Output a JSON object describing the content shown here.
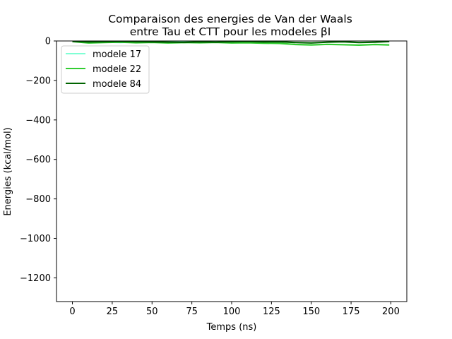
{
  "chart_data": {
    "type": "line",
    "title_line1": "Comparaison des energies de Van der Waals",
    "title_line2": "entre Tau et CTT pour les modeles βI",
    "xlabel": "Temps (ns)",
    "ylabel": "Energies (kcal/mol)",
    "xlim": [
      -10,
      210
    ],
    "ylim": [
      -1320,
      0
    ],
    "xticks": [
      0,
      25,
      50,
      75,
      100,
      125,
      150,
      175,
      200
    ],
    "yticks": [
      0,
      -200,
      -400,
      -600,
      -800,
      -1000,
      -1200
    ],
    "xtick_labels": [
      "0",
      "25",
      "50",
      "75",
      "100",
      "125",
      "150",
      "175",
      "200"
    ],
    "ytick_labels": [
      "0",
      "−200",
      "−400",
      "−600",
      "−800",
      "−1000",
      "−1200"
    ],
    "legend_position": "upper left",
    "series": [
      {
        "name": "modele 17",
        "color": "#7fffd4",
        "x": [
          0,
          10,
          20,
          30,
          40,
          50,
          60,
          70,
          80,
          90,
          100,
          110,
          120
        ],
        "y": [
          -2,
          -4,
          -6,
          -8,
          -6,
          -5,
          -4,
          -3,
          -4,
          -3,
          -2,
          -2,
          -1
        ]
      },
      {
        "name": "modele 22",
        "color": "#32cd32",
        "x": [
          0,
          10,
          20,
          30,
          40,
          50,
          60,
          70,
          80,
          90,
          100,
          110,
          120,
          130,
          140,
          150,
          160,
          170,
          180,
          190,
          199
        ],
        "y": [
          -3,
          -10,
          -8,
          -6,
          -9,
          -7,
          -10,
          -8,
          -9,
          -7,
          -10,
          -9,
          -11,
          -12,
          -18,
          -20,
          -17,
          -19,
          -21,
          -18,
          -20
        ]
      },
      {
        "name": "modele 84",
        "color": "#006400",
        "x": [
          0,
          10,
          20,
          30,
          40,
          50,
          60,
          70,
          80,
          90,
          100,
          110,
          120,
          130,
          140,
          150,
          160,
          170,
          180,
          190,
          199
        ],
        "y": [
          -2,
          -5,
          -4,
          -3,
          -4,
          -5,
          -6,
          -7,
          -5,
          -6,
          -4,
          -3,
          -5,
          -4,
          -8,
          -10,
          -6,
          -4,
          -8,
          -6,
          -3
        ]
      }
    ]
  }
}
